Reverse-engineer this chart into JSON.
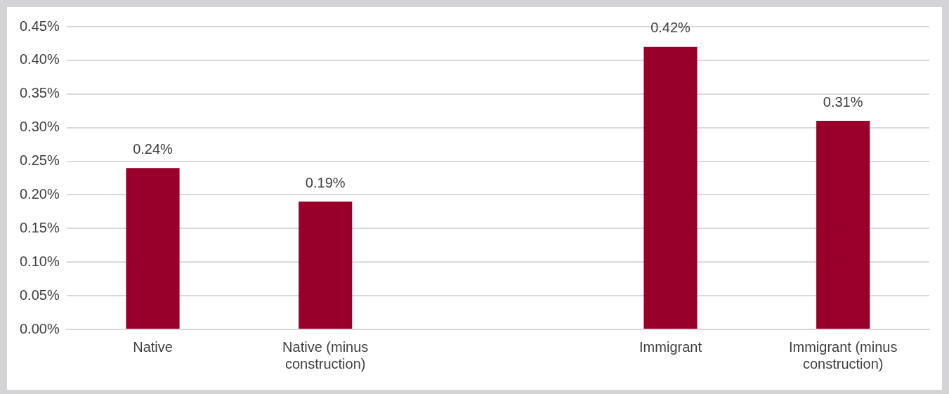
{
  "chart_data": {
    "type": "bar",
    "categories": [
      "Native",
      "Native (minus construction)",
      null,
      "Immigrant",
      "Immigrant (minus construction)"
    ],
    "series": [
      {
        "color": "#990029",
        "values": [
          0.24,
          0.19,
          null,
          0.42,
          0.31
        ]
      }
    ],
    "value_labels": [
      "0.24%",
      "0.19%",
      null,
      "0.42%",
      "0.31%"
    ],
    "ylim": [
      0,
      0.45
    ],
    "yticks": [
      {
        "value": 0,
        "label": "0.00%"
      },
      {
        "value": 0.05,
        "label": "0.05%"
      },
      {
        "value": 0.1,
        "label": "0.10%"
      },
      {
        "value": 0.15,
        "label": "0.15%"
      },
      {
        "value": 0.2,
        "label": "0.20%"
      },
      {
        "value": 0.25,
        "label": "0.25%"
      },
      {
        "value": 0.3,
        "label": "0.30%"
      },
      {
        "value": 0.35,
        "label": "0.35%"
      },
      {
        "value": 0.4,
        "label": "0.40%"
      },
      {
        "value": 0.45,
        "label": "0.45%"
      }
    ],
    "grid": "y",
    "legend": false
  }
}
